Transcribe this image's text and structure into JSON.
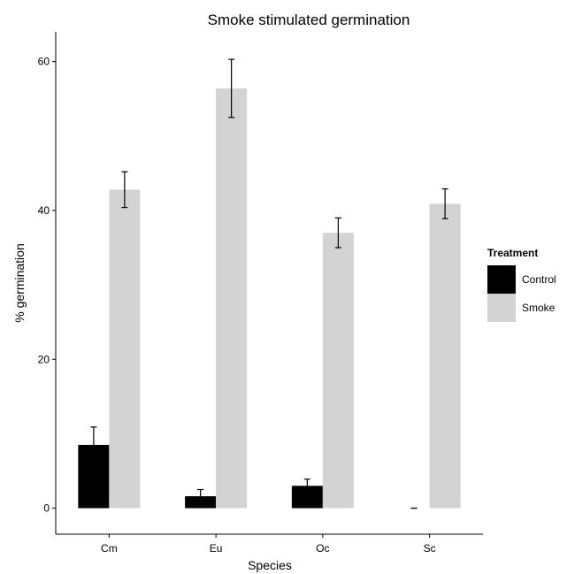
{
  "chart_data": {
    "type": "bar",
    "title": "Smoke stimulated germination",
    "xlabel": "Species",
    "ylabel": "% germination",
    "categories": [
      "Cm",
      "Eu",
      "Oc",
      "Sc"
    ],
    "ylim": [
      -3.5,
      64
    ],
    "yticks": [
      0,
      20,
      40,
      60
    ],
    "grid": false,
    "legend": {
      "title": "Treatment",
      "position": "right"
    },
    "series": [
      {
        "name": "Control",
        "color": "#000000",
        "values": [
          8.5,
          1.6,
          3.0,
          0.0
        ],
        "errors": [
          2.4,
          0.9,
          0.9,
          0.0
        ]
      },
      {
        "name": "Smoke",
        "color": "#d3d3d3",
        "values": [
          42.8,
          56.4,
          37.0,
          40.9
        ],
        "errors": [
          2.4,
          3.9,
          2.0,
          2.0
        ]
      }
    ]
  }
}
